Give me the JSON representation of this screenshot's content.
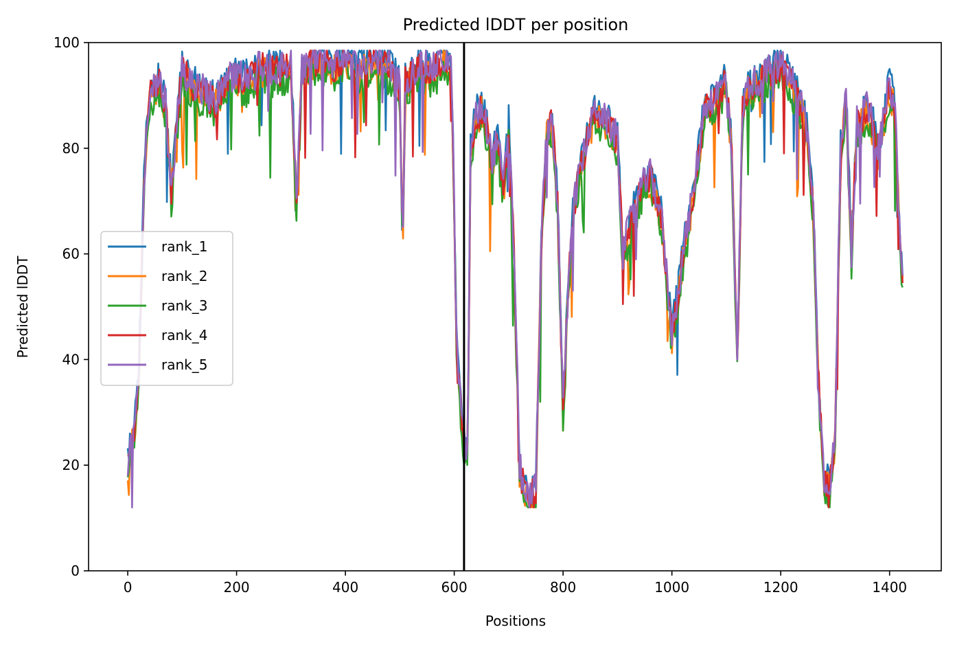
{
  "chart_data": {
    "type": "line",
    "title": "Predicted lDDT per position",
    "xlabel": "Positions",
    "ylabel": "Predicted lDDT",
    "xlim": [
      -72,
      1495
    ],
    "ylim": [
      0,
      100
    ],
    "xticks": [
      0,
      200,
      400,
      600,
      800,
      1000,
      1200,
      1400
    ],
    "yticks": [
      0,
      20,
      40,
      60,
      80,
      100
    ],
    "grid": false,
    "legend_position": "center-left",
    "vline": {
      "x": 618,
      "color": "#000000"
    },
    "series": [
      {
        "name": "rank_1",
        "color": "#1f77b4",
        "offset": 0.8
      },
      {
        "name": "rank_2",
        "color": "#ff7f0e",
        "offset": -1.2
      },
      {
        "name": "rank_3",
        "color": "#2ca02c",
        "offset": -2.5
      },
      {
        "name": "rank_4",
        "color": "#d62728",
        "offset": -0.4
      },
      {
        "name": "rank_5",
        "color": "#9467bd",
        "offset": 0.0
      }
    ],
    "base_profile": {
      "x": [
        0,
        10,
        20,
        30,
        40,
        50,
        60,
        70,
        80,
        90,
        100,
        120,
        140,
        160,
        180,
        200,
        220,
        240,
        260,
        280,
        300,
        310,
        320,
        340,
        360,
        380,
        400,
        420,
        440,
        460,
        480,
        500,
        505,
        510,
        540,
        560,
        580,
        595,
        605,
        615,
        620,
        625,
        630,
        640,
        650,
        660,
        670,
        680,
        690,
        700,
        710,
        720,
        730,
        740,
        750,
        760,
        770,
        780,
        790,
        800,
        810,
        820,
        840,
        860,
        880,
        900,
        910,
        920,
        930,
        940,
        960,
        980,
        1000,
        1010,
        1020,
        1040,
        1060,
        1080,
        1100,
        1110,
        1120,
        1130,
        1140,
        1160,
        1180,
        1200,
        1220,
        1240,
        1250,
        1260,
        1270,
        1280,
        1290,
        1300,
        1310,
        1320,
        1330,
        1340,
        1360,
        1380,
        1400,
        1410,
        1420,
        1424
      ],
      "y": [
        21,
        26,
        36,
        75,
        90,
        92,
        93,
        88,
        72,
        85,
        95,
        92,
        91,
        89,
        93,
        94,
        93,
        96,
        95,
        95,
        96,
        70,
        95,
        97,
        97,
        96,
        98,
        95,
        97,
        97,
        96,
        92,
        60,
        93,
        96,
        95,
        97,
        96,
        40,
        28,
        22,
        25,
        80,
        86,
        88,
        84,
        78,
        82,
        72,
        85,
        60,
        20,
        15,
        14,
        16,
        62,
        84,
        85,
        70,
        30,
        55,
        70,
        80,
        88,
        85,
        82,
        60,
        65,
        68,
        72,
        75,
        68,
        45,
        52,
        60,
        72,
        88,
        90,
        93,
        80,
        40,
        88,
        92,
        93,
        95,
        96,
        93,
        88,
        82,
        68,
        35,
        17,
        17,
        25,
        80,
        90,
        60,
        85,
        88,
        80,
        92,
        88,
        60,
        55
      ]
    }
  }
}
